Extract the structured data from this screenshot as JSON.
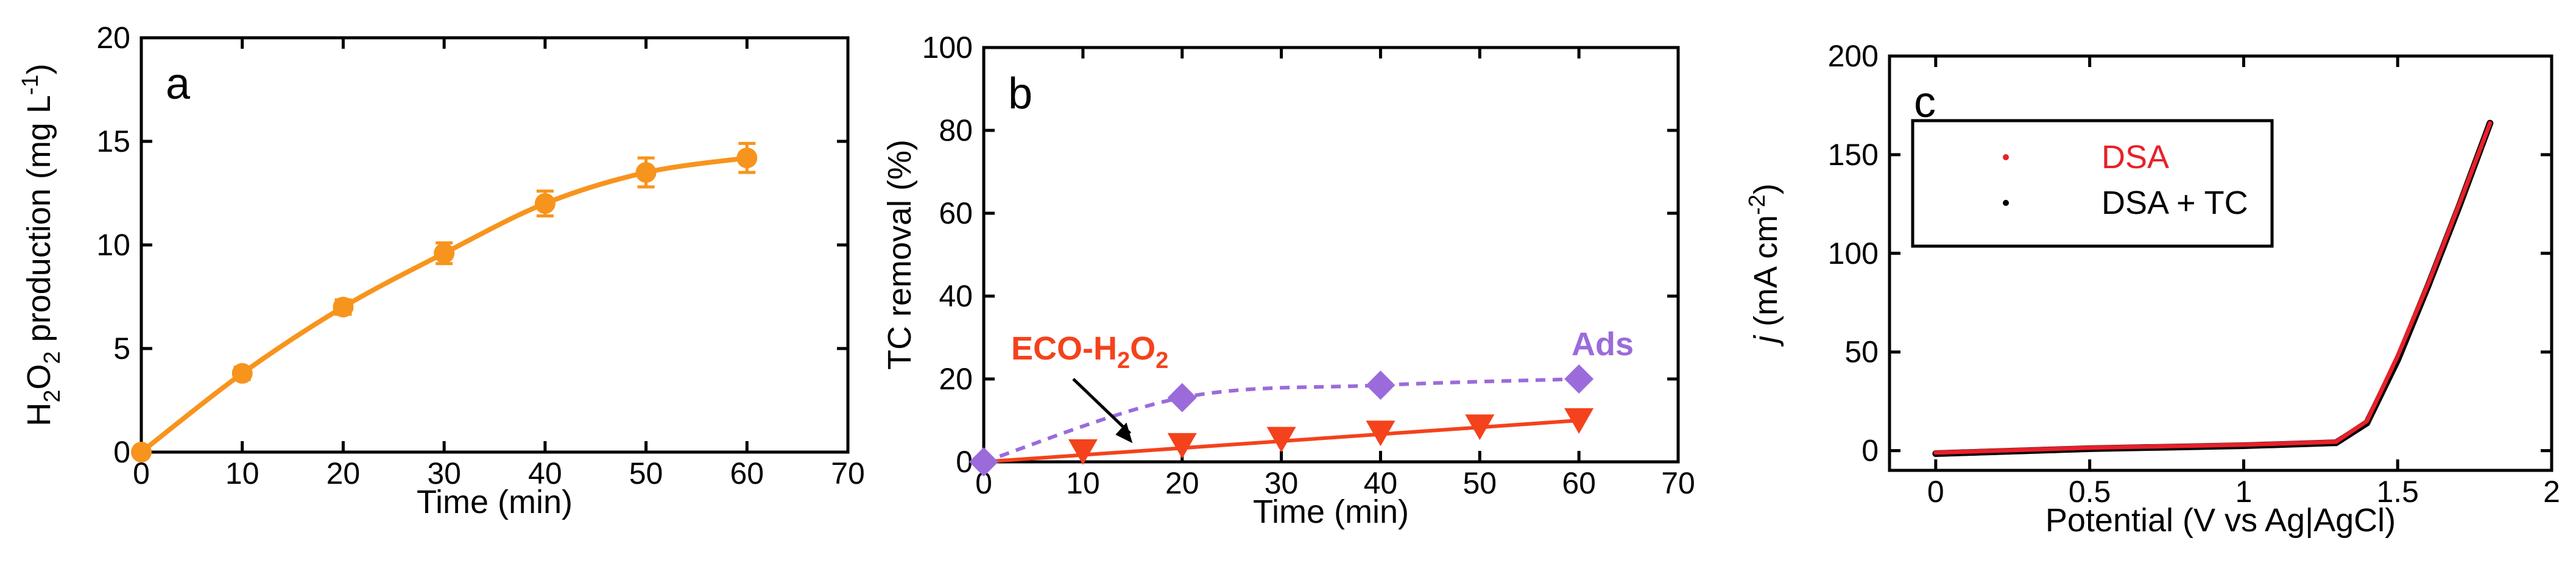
{
  "chart_data": [
    {
      "panel": "a",
      "type": "line",
      "xlabel": "Time (min)",
      "ylabel": {
        "pre": "H",
        "sub1": "2",
        "mid": "O",
        "sub2": "2",
        "post": " production (mg L",
        "sup": "-1",
        "end": ")"
      },
      "xlim": [
        0,
        70
      ],
      "ylim": [
        0,
        20
      ],
      "xticks": [
        "0",
        "10",
        "20",
        "30",
        "40",
        "50",
        "60",
        "70"
      ],
      "yticks": [
        "0",
        "5",
        "10",
        "15",
        "20"
      ],
      "series": [
        {
          "name": "H2O2 production",
          "color": "#f7941d",
          "x": [
            0,
            10,
            20,
            30,
            40,
            50,
            60
          ],
          "y": [
            0,
            3.8,
            7.0,
            9.6,
            12.0,
            13.5,
            14.2
          ],
          "err": [
            0,
            0.3,
            0.35,
            0.5,
            0.6,
            0.7,
            0.7
          ]
        }
      ]
    },
    {
      "panel": "b",
      "type": "line",
      "xlabel": "Time (min)",
      "ylabel": "TC removal (%)",
      "xlim": [
        0,
        70
      ],
      "ylim": [
        0,
        100
      ],
      "xticks": [
        "0",
        "10",
        "20",
        "30",
        "40",
        "50",
        "60",
        "70"
      ],
      "yticks": [
        "0",
        "20",
        "40",
        "60",
        "80",
        "100"
      ],
      "series": [
        {
          "name": "ECO-H2O2",
          "color": "#f4421c",
          "marker": "triangle-down",
          "style": "solid",
          "x": [
            0,
            10,
            20,
            30,
            40,
            50,
            60
          ],
          "y": [
            0,
            2.5,
            4.0,
            5.5,
            7.0,
            8.5,
            10.0
          ]
        },
        {
          "name": "Ads",
          "color": "#9b6bdb",
          "marker": "diamond",
          "style": "dashed",
          "x": [
            0,
            20,
            40,
            60
          ],
          "y": [
            0,
            15.5,
            18.5,
            20.0
          ]
        }
      ],
      "annotations": [
        {
          "label": "ECO-H2O2",
          "text_parts": [
            "ECO-H",
            "2",
            "O",
            "2"
          ],
          "color": "#f4421c",
          "arrow_to": [
            15,
            4.5
          ]
        },
        {
          "label": "Ads",
          "text": "Ads",
          "color": "#9b6bdb"
        }
      ]
    },
    {
      "panel": "c",
      "type": "scatter",
      "xlabel": "Potential (V vs Ag|AgCl)",
      "ylabel": {
        "italic": "j",
        "post": " (mA cm",
        "sup": "-2",
        "end": ")"
      },
      "xlim": [
        -0.15,
        2
      ],
      "ylim": [
        -10,
        200
      ],
      "xticks": [
        "0",
        "0.5",
        "1",
        "1.5",
        "2"
      ],
      "yticks": [
        "0",
        "50",
        "100",
        "150",
        "200"
      ],
      "legend_position": "top-left",
      "series": [
        {
          "name": "DSA",
          "color": "#e8202a",
          "x": [
            0,
            0.5,
            1.0,
            1.3,
            1.4,
            1.5,
            1.6,
            1.7,
            1.8
          ],
          "y": [
            -1,
            1.5,
            3.0,
            4.5,
            15,
            48,
            85,
            125,
            166
          ]
        },
        {
          "name": "DSA + TC",
          "color": "#000000",
          "x": [
            0,
            0.5,
            1.0,
            1.3,
            1.4,
            1.5,
            1.6,
            1.7,
            1.8
          ],
          "y": [
            -1.5,
            1.0,
            2.5,
            4.0,
            14,
            46,
            84,
            124,
            166
          ]
        }
      ]
    }
  ]
}
